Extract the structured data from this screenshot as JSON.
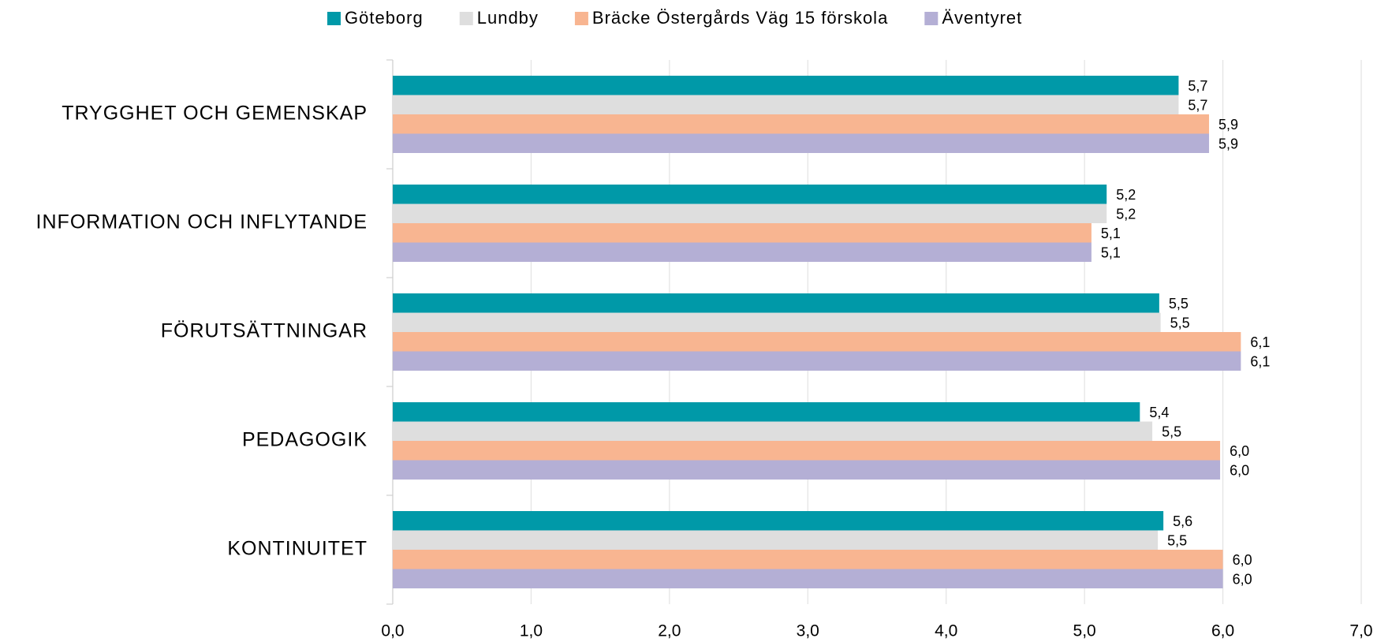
{
  "chart_data": {
    "type": "hbar",
    "categories": [
      "TRYGGHET OCH GEMENSKAP",
      "INFORMATION OCH INFLYTANDE",
      "FÖRUTSÄTTNINGAR",
      "PEDAGOGIK",
      "KONTINUITET"
    ],
    "series": [
      {
        "name": "Göteborg",
        "color": "#0099a8",
        "values": [
          5.68,
          5.16,
          5.54,
          5.4,
          5.57
        ],
        "value_labels": [
          "5,7",
          "5,2",
          "5,5",
          "5,4",
          "5,6"
        ]
      },
      {
        "name": "Lundby",
        "color": "#dedede",
        "values": [
          5.68,
          5.16,
          5.55,
          5.49,
          5.53
        ],
        "value_labels": [
          "5,7",
          "5,2",
          "5,5",
          "5,5",
          "5,5"
        ]
      },
      {
        "name": "Bräcke Östergårds Väg 15 förskola",
        "color": "#f8b591",
        "values": [
          5.9,
          5.05,
          6.13,
          5.98,
          6.0
        ],
        "value_labels": [
          "5,9",
          "5,1",
          "6,1",
          "6,0",
          "6,0"
        ]
      },
      {
        "name": "Äventyret",
        "color": "#b4afd5",
        "values": [
          5.9,
          5.05,
          6.13,
          5.98,
          6.0
        ],
        "value_labels": [
          "5,9",
          "5,1",
          "6,1",
          "6,0",
          "6,0"
        ]
      }
    ],
    "xlim": [
      0,
      7
    ],
    "xticks": [
      {
        "value": 0,
        "label": "0,0"
      },
      {
        "value": 1,
        "label": "1,0"
      },
      {
        "value": 2,
        "label": "2,0"
      },
      {
        "value": 3,
        "label": "3,0"
      },
      {
        "value": 4,
        "label": "4,0"
      },
      {
        "value": 5,
        "label": "5,0"
      },
      {
        "value": 6,
        "label": "6,0"
      },
      {
        "value": 7,
        "label": "7,0"
      }
    ],
    "grid": true,
    "legend": "top"
  }
}
